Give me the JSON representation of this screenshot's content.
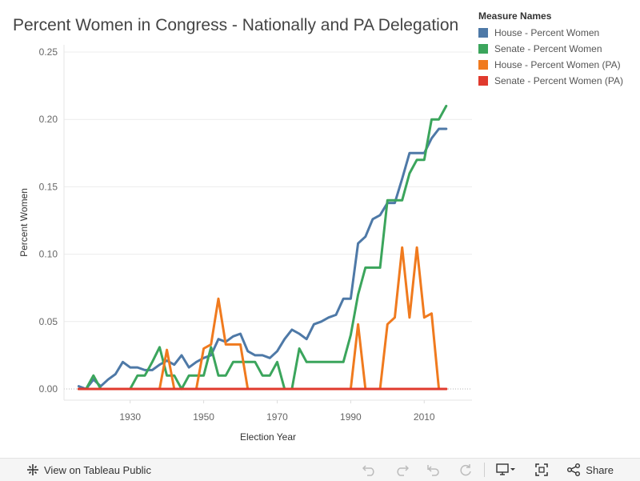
{
  "chart_data": {
    "type": "line",
    "title": "Percent Women in Congress - Nationally and PA Delegation",
    "xlabel": "Election Year",
    "ylabel": "Percent Women",
    "xlim": [
      1912,
      2023
    ],
    "ylim": [
      0,
      0.25
    ],
    "x_ticks": [
      1930,
      1950,
      1970,
      1990,
      2010
    ],
    "x_tick_labels": [
      "1930",
      "1950",
      "1970",
      "1990",
      "2010"
    ],
    "y_ticks": [
      0,
      0.05,
      0.1,
      0.15,
      0.2,
      0.25
    ],
    "y_tick_labels": [
      "0.00",
      "0.05",
      "0.10",
      "0.15",
      "0.20",
      "0.25"
    ],
    "grid": true,
    "legend_title": "Measure Names",
    "legend_position": "top-right",
    "series": [
      {
        "name": "House - Percent Women",
        "color": "#4e79a7",
        "x": [
          1916,
          1918,
          1920,
          1922,
          1924,
          1926,
          1928,
          1930,
          1932,
          1934,
          1936,
          1938,
          1940,
          1942,
          1944,
          1946,
          1948,
          1950,
          1952,
          1954,
          1956,
          1958,
          1960,
          1962,
          1964,
          1966,
          1968,
          1970,
          1972,
          1974,
          1976,
          1978,
          1980,
          1982,
          1984,
          1986,
          1988,
          1990,
          1992,
          1994,
          1996,
          1998,
          2000,
          2002,
          2004,
          2006,
          2008,
          2010,
          2012,
          2014,
          2016
        ],
        "values": [
          0.002,
          0,
          0.007,
          0.002,
          0.007,
          0.011,
          0.02,
          0.016,
          0.016,
          0.014,
          0.014,
          0.018,
          0.021,
          0.018,
          0.025,
          0.016,
          0.02,
          0.023,
          0.025,
          0.037,
          0.035,
          0.039,
          0.041,
          0.028,
          0.025,
          0.025,
          0.023,
          0.028,
          0.037,
          0.044,
          0.041,
          0.037,
          0.048,
          0.05,
          0.053,
          0.055,
          0.067,
          0.067,
          0.108,
          0.113,
          0.126,
          0.129,
          0.138,
          0.138,
          0.156,
          0.175,
          0.175,
          0.175,
          0.186,
          0.193,
          0.193
        ]
      },
      {
        "name": "Senate - Percent Women",
        "color": "#3ba55c",
        "x": [
          1916,
          1918,
          1920,
          1922,
          1924,
          1926,
          1928,
          1930,
          1932,
          1934,
          1936,
          1938,
          1940,
          1942,
          1944,
          1946,
          1948,
          1950,
          1952,
          1954,
          1956,
          1958,
          1960,
          1962,
          1964,
          1966,
          1968,
          1970,
          1972,
          1974,
          1976,
          1978,
          1980,
          1982,
          1984,
          1986,
          1988,
          1990,
          1992,
          1994,
          1996,
          1998,
          2000,
          2002,
          2004,
          2006,
          2008,
          2010,
          2012,
          2014,
          2016
        ],
        "values": [
          0,
          0,
          0.01,
          0,
          0,
          0,
          0,
          0,
          0.01,
          0.01,
          0.02,
          0.031,
          0.01,
          0.01,
          0,
          0.01,
          0.01,
          0.01,
          0.031,
          0.01,
          0.01,
          0.02,
          0.02,
          0.02,
          0.02,
          0.01,
          0.01,
          0.02,
          0,
          0,
          0.03,
          0.02,
          0.02,
          0.02,
          0.02,
          0.02,
          0.02,
          0.04,
          0.07,
          0.09,
          0.09,
          0.09,
          0.14,
          0.14,
          0.14,
          0.16,
          0.17,
          0.17,
          0.2,
          0.2,
          0.21
        ]
      },
      {
        "name": "House - Percent Women (PA)",
        "color": "#f07a1e",
        "x": [
          1916,
          1918,
          1920,
          1922,
          1924,
          1926,
          1928,
          1930,
          1932,
          1934,
          1936,
          1938,
          1940,
          1942,
          1944,
          1946,
          1948,
          1950,
          1952,
          1954,
          1956,
          1958,
          1960,
          1962,
          1964,
          1966,
          1968,
          1970,
          1972,
          1974,
          1976,
          1978,
          1980,
          1982,
          1984,
          1986,
          1988,
          1990,
          1992,
          1994,
          1996,
          1998,
          2000,
          2002,
          2004,
          2006,
          2008,
          2010,
          2012,
          2014,
          2016
        ],
        "values": [
          0,
          0,
          0,
          0,
          0,
          0,
          0,
          0,
          0,
          0,
          0,
          0,
          0.029,
          0,
          0,
          0,
          0,
          0.03,
          0.033,
          0.067,
          0.033,
          0.033,
          0.033,
          0,
          0,
          0,
          0,
          0,
          0,
          0,
          0,
          0,
          0,
          0,
          0,
          0,
          0,
          0,
          0.048,
          0,
          0,
          0,
          0.048,
          0.053,
          0.105,
          0.053,
          0.105,
          0.053,
          0.056,
          0,
          0
        ]
      },
      {
        "name": "Senate - Percent Women (PA)",
        "color": "#e03a2e",
        "x": [
          1916,
          2016
        ],
        "values": [
          0,
          0
        ]
      }
    ]
  },
  "toolbar": {
    "view_label": "View on Tableau Public",
    "share_label": "Share",
    "undo_icon": "undo-icon",
    "redo_icon": "redo-icon",
    "revert_icon": "revert-icon",
    "refresh_icon": "refresh-icon",
    "download_icon": "download-icon",
    "fullscreen_icon": "fullscreen-icon",
    "share_icon": "share-icon"
  }
}
